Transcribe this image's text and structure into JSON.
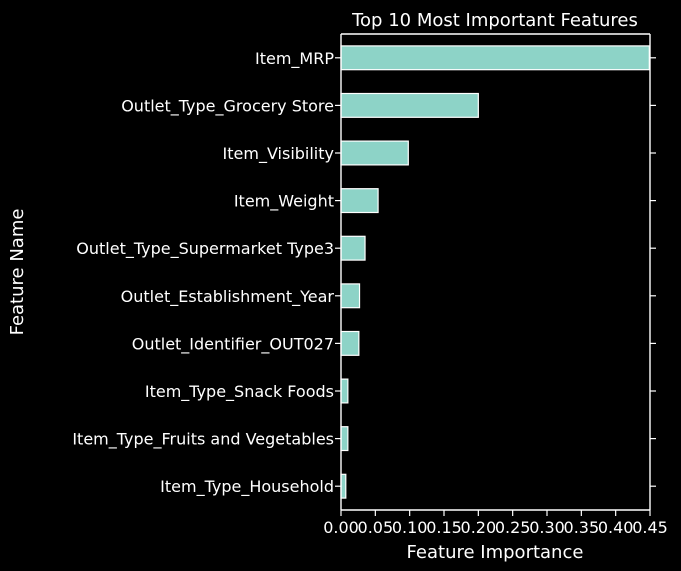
{
  "chart_data": {
    "type": "bar",
    "orientation": "horizontal",
    "title": "Top 10 Most Important Features",
    "xlabel": "Feature Importance",
    "ylabel": "Feature Name",
    "xlim": [
      0,
      0.45
    ],
    "x_ticks": [
      "0.00",
      "0.05",
      "0.10",
      "0.15",
      "0.20",
      "0.25",
      "0.30",
      "0.35",
      "0.40",
      "0.45"
    ],
    "x_tick_values": [
      0,
      0.05,
      0.1,
      0.15,
      0.2,
      0.25,
      0.3,
      0.35,
      0.4,
      0.45
    ],
    "categories": [
      "Item_MRP",
      "Outlet_Type_Grocery Store",
      "Item_Visibility",
      "Item_Weight",
      "Outlet_Type_Supermarket Type3",
      "Outlet_Establishment_Year",
      "Outlet_Identifier_OUT027",
      "Item_Type_Snack Foods",
      "Item_Type_Fruits and Vegetables",
      "Item_Type_Household"
    ],
    "values": [
      0.449,
      0.2,
      0.098,
      0.054,
      0.035,
      0.027,
      0.026,
      0.01,
      0.01,
      0.007
    ],
    "grid": false,
    "background": "#000000",
    "bar_color": "#8dd3c7",
    "bar_edge_color": "#ffffff",
    "text_color": "#ffffff"
  }
}
